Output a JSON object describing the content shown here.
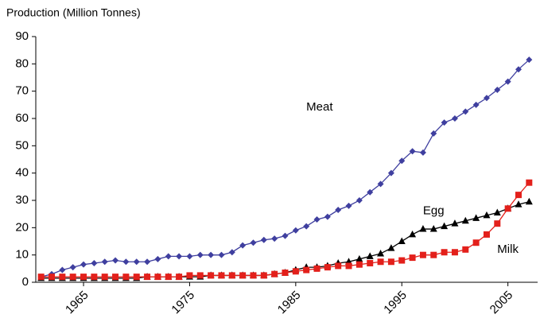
{
  "chart_data": {
    "type": "line",
    "y_label": "Production (Million Tonnes)",
    "x": [
      1961,
      1962,
      1963,
      1964,
      1965,
      1966,
      1967,
      1968,
      1969,
      1970,
      1971,
      1972,
      1973,
      1974,
      1975,
      1976,
      1977,
      1978,
      1979,
      1980,
      1981,
      1982,
      1983,
      1984,
      1985,
      1986,
      1987,
      1988,
      1989,
      1990,
      1991,
      1992,
      1993,
      1994,
      1995,
      1996,
      1997,
      1998,
      1999,
      2000,
      2001,
      2002,
      2003,
      2004,
      2005,
      2006,
      2007
    ],
    "series": [
      {
        "name": "Meat",
        "color": "#3f3f9f",
        "marker": "diamond",
        "values": [
          2,
          3,
          4.5,
          5.5,
          6.5,
          7,
          7.5,
          8,
          7.5,
          7.5,
          7.5,
          8.5,
          9.5,
          9.5,
          9.5,
          10,
          10,
          10,
          11,
          13.5,
          14.5,
          15.5,
          16,
          17,
          19,
          20.5,
          23,
          24,
          26.5,
          28,
          30,
          33,
          36,
          40,
          44.5,
          48,
          47.5,
          54.5,
          58.5,
          60,
          62.5,
          65,
          67.5,
          70.5,
          73.5,
          78,
          81.5
        ]
      },
      {
        "name": "Egg",
        "color": "#000000",
        "marker": "triangle",
        "values": [
          1.5,
          1.5,
          1.5,
          1.5,
          1.5,
          1.5,
          1.5,
          1.5,
          1.5,
          1.5,
          2,
          2,
          2,
          2,
          2,
          2,
          2.5,
          2.5,
          2.5,
          2.5,
          2.5,
          2.5,
          3,
          3.5,
          4.5,
          5.5,
          5.5,
          6,
          7,
          7.5,
          8.5,
          9.5,
          10.5,
          12.5,
          15,
          17.5,
          19.5,
          19.5,
          20.5,
          21.5,
          22.5,
          23.5,
          24.5,
          25.5,
          27,
          28.5,
          29.5
        ]
      },
      {
        "name": "Milk",
        "color": "#e3201b",
        "marker": "square",
        "values": [
          2,
          2,
          2,
          2,
          2,
          2,
          2,
          2,
          2,
          2,
          2,
          2,
          2,
          2,
          2.5,
          2.5,
          2.5,
          2.5,
          2.5,
          2.5,
          2.5,
          2.5,
          3,
          3.5,
          4,
          4.5,
          5,
          5.5,
          6,
          6,
          6.5,
          7,
          7.5,
          7.5,
          8,
          9,
          10,
          10,
          11,
          11,
          12,
          14.5,
          17.5,
          21.5,
          27,
          32,
          36.5
        ]
      }
    ],
    "xlim": [
      1960.5,
      2007.8
    ],
    "xticks": [
      1965,
      1975,
      1985,
      1995,
      2005
    ],
    "ylim": [
      0,
      90
    ],
    "yticks": [
      0,
      10,
      20,
      30,
      40,
      50,
      60,
      70,
      80,
      90
    ]
  }
}
